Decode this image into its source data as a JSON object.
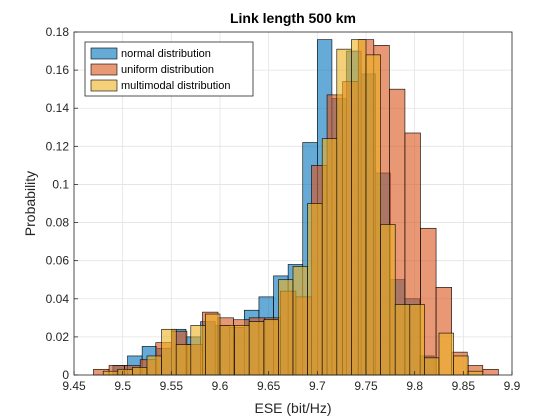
{
  "chart_data": {
    "type": "bar",
    "title": "Link length 500 km",
    "xlabel": "ESE (bit/Hz)",
    "ylabel": "Probability",
    "xlim": [
      9.45,
      9.9
    ],
    "ylim": [
      0,
      0.18
    ],
    "xticks": [
      "9.45",
      "9.5",
      "9.55",
      "9.6",
      "9.65",
      "9.7",
      "9.75",
      "9.8",
      "9.85",
      "9.9"
    ],
    "yticks": [
      "0",
      "0.02",
      "0.04",
      "0.06",
      "0.08",
      "0.1",
      "0.12",
      "0.14",
      "0.16",
      "0.18"
    ],
    "grid": true,
    "legend_position": "top-left",
    "series": [
      {
        "name": "normal distribution",
        "color": "#0072BD",
        "bins": [
          {
            "x0": 9.49,
            "x1": 9.505,
            "y": 0.005
          },
          {
            "x0": 9.505,
            "x1": 9.52,
            "y": 0.01
          },
          {
            "x0": 9.52,
            "x1": 9.535,
            "y": 0.015
          },
          {
            "x0": 9.535,
            "x1": 9.55,
            "y": 0.014
          },
          {
            "x0": 9.55,
            "x1": 9.565,
            "y": 0.024
          },
          {
            "x0": 9.565,
            "x1": 9.58,
            "y": 0.02
          },
          {
            "x0": 9.58,
            "x1": 9.595,
            "y": 0.028
          },
          {
            "x0": 9.595,
            "x1": 9.61,
            "y": 0.026
          },
          {
            "x0": 9.61,
            "x1": 9.625,
            "y": 0.025
          },
          {
            "x0": 9.625,
            "x1": 9.64,
            "y": 0.034
          },
          {
            "x0": 9.64,
            "x1": 9.655,
            "y": 0.041
          },
          {
            "x0": 9.655,
            "x1": 9.67,
            "y": 0.052
          },
          {
            "x0": 9.67,
            "x1": 9.685,
            "y": 0.058
          },
          {
            "x0": 9.685,
            "x1": 9.7,
            "y": 0.122
          },
          {
            "x0": 9.7,
            "x1": 9.715,
            "y": 0.176
          },
          {
            "x0": 9.715,
            "x1": 9.73,
            "y": 0.145
          },
          {
            "x0": 9.73,
            "x1": 9.745,
            "y": 0.17
          },
          {
            "x0": 9.745,
            "x1": 9.76,
            "y": 0.158
          },
          {
            "x0": 9.76,
            "x1": 9.775,
            "y": 0.106
          },
          {
            "x0": 9.775,
            "x1": 9.79,
            "y": 0.05
          },
          {
            "x0": 9.79,
            "x1": 9.805,
            "y": 0.04
          },
          {
            "x0": 9.805,
            "x1": 9.82,
            "y": 0.01
          }
        ]
      },
      {
        "name": "uniform distribution",
        "color": "#D95319",
        "bins": [
          {
            "x0": 9.47,
            "x1": 9.486,
            "y": 0.003
          },
          {
            "x0": 9.486,
            "x1": 9.502,
            "y": 0.005
          },
          {
            "x0": 9.502,
            "x1": 9.518,
            "y": 0.005
          },
          {
            "x0": 9.518,
            "x1": 9.534,
            "y": 0.008
          },
          {
            "x0": 9.534,
            "x1": 9.55,
            "y": 0.017
          },
          {
            "x0": 9.55,
            "x1": 9.566,
            "y": 0.023
          },
          {
            "x0": 9.566,
            "x1": 9.582,
            "y": 0.016
          },
          {
            "x0": 9.582,
            "x1": 9.598,
            "y": 0.033
          },
          {
            "x0": 9.598,
            "x1": 9.614,
            "y": 0.03
          },
          {
            "x0": 9.614,
            "x1": 9.63,
            "y": 0.029
          },
          {
            "x0": 9.63,
            "x1": 9.646,
            "y": 0.03
          },
          {
            "x0": 9.646,
            "x1": 9.662,
            "y": 0.03
          },
          {
            "x0": 9.662,
            "x1": 9.678,
            "y": 0.044
          },
          {
            "x0": 9.678,
            "x1": 9.694,
            "y": 0.041
          },
          {
            "x0": 9.694,
            "x1": 9.71,
            "y": 0.11
          },
          {
            "x0": 9.71,
            "x1": 9.726,
            "y": 0.147
          },
          {
            "x0": 9.726,
            "x1": 9.742,
            "y": 0.154
          },
          {
            "x0": 9.742,
            "x1": 9.758,
            "y": 0.176
          },
          {
            "x0": 9.758,
            "x1": 9.774,
            "y": 0.173
          },
          {
            "x0": 9.774,
            "x1": 9.79,
            "y": 0.15
          },
          {
            "x0": 9.79,
            "x1": 9.806,
            "y": 0.127
          },
          {
            "x0": 9.806,
            "x1": 9.822,
            "y": 0.077
          },
          {
            "x0": 9.822,
            "x1": 9.838,
            "y": 0.046
          },
          {
            "x0": 9.838,
            "x1": 9.854,
            "y": 0.012
          },
          {
            "x0": 9.854,
            "x1": 9.87,
            "y": 0.005
          },
          {
            "x0": 9.87,
            "x1": 9.886,
            "y": 0.003
          }
        ]
      },
      {
        "name": "multimodal distribution",
        "color": "#EDB120",
        "bins": [
          {
            "x0": 9.48,
            "x1": 9.495,
            "y": 0.002
          },
          {
            "x0": 9.495,
            "x1": 9.51,
            "y": 0.003
          },
          {
            "x0": 9.51,
            "x1": 9.525,
            "y": 0.004
          },
          {
            "x0": 9.525,
            "x1": 9.54,
            "y": 0.01
          },
          {
            "x0": 9.54,
            "x1": 9.555,
            "y": 0.024
          },
          {
            "x0": 9.555,
            "x1": 9.57,
            "y": 0.016
          },
          {
            "x0": 9.57,
            "x1": 9.585,
            "y": 0.026
          },
          {
            "x0": 9.585,
            "x1": 9.6,
            "y": 0.032
          },
          {
            "x0": 9.6,
            "x1": 9.615,
            "y": 0.026
          },
          {
            "x0": 9.615,
            "x1": 9.63,
            "y": 0.026
          },
          {
            "x0": 9.63,
            "x1": 9.645,
            "y": 0.028
          },
          {
            "x0": 9.645,
            "x1": 9.66,
            "y": 0.029
          },
          {
            "x0": 9.66,
            "x1": 9.675,
            "y": 0.05
          },
          {
            "x0": 9.675,
            "x1": 9.69,
            "y": 0.057
          },
          {
            "x0": 9.69,
            "x1": 9.705,
            "y": 0.09
          },
          {
            "x0": 9.705,
            "x1": 9.72,
            "y": 0.124
          },
          {
            "x0": 9.72,
            "x1": 9.735,
            "y": 0.171
          },
          {
            "x0": 9.735,
            "x1": 9.75,
            "y": 0.176
          },
          {
            "x0": 9.75,
            "x1": 9.765,
            "y": 0.168
          },
          {
            "x0": 9.765,
            "x1": 9.78,
            "y": 0.079
          },
          {
            "x0": 9.78,
            "x1": 9.795,
            "y": 0.037
          },
          {
            "x0": 9.795,
            "x1": 9.81,
            "y": 0.037
          },
          {
            "x0": 9.81,
            "x1": 9.825,
            "y": 0.009
          },
          {
            "x0": 9.825,
            "x1": 9.84,
            "y": 0.022
          },
          {
            "x0": 9.84,
            "x1": 9.855,
            "y": 0.01
          },
          {
            "x0": 9.855,
            "x1": 9.87,
            "y": 0.002
          }
        ]
      }
    ]
  }
}
